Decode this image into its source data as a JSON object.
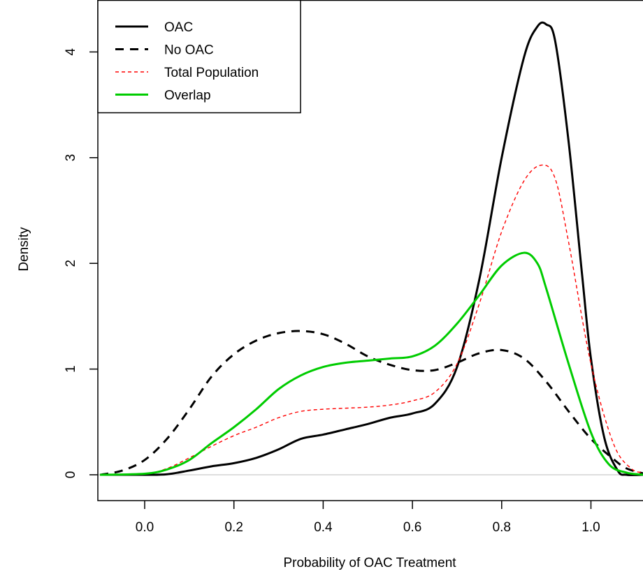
{
  "chart_data": {
    "type": "line",
    "title": "",
    "xlabel": "Probability of OAC Treatment",
    "ylabel": "Density",
    "xlim": [
      -0.1,
      1.12
    ],
    "ylim": [
      0,
      4.38
    ],
    "x_ticks": [
      0.0,
      0.2,
      0.4,
      0.6,
      0.8,
      1.0
    ],
    "x_tick_labels": [
      "0.0",
      "0.2",
      "0.4",
      "0.6",
      "0.8",
      "1.0"
    ],
    "y_ticks": [
      0,
      1,
      2,
      3,
      4
    ],
    "y_tick_labels": [
      "0",
      "1",
      "2",
      "3",
      "4"
    ],
    "grid": false,
    "legend_position": "top-left",
    "series": [
      {
        "name": "OAC",
        "color": "#000000",
        "style": "solid",
        "width": "thick",
        "x": [
          -0.1,
          0.0,
          0.05,
          0.1,
          0.15,
          0.2,
          0.25,
          0.3,
          0.35,
          0.4,
          0.45,
          0.5,
          0.55,
          0.6,
          0.65,
          0.7,
          0.75,
          0.8,
          0.85,
          0.88,
          0.9,
          0.92,
          0.95,
          0.98,
          1.0,
          1.03,
          1.06,
          1.08,
          1.12
        ],
        "y": [
          0,
          0,
          0.005,
          0.04,
          0.08,
          0.11,
          0.16,
          0.24,
          0.34,
          0.38,
          0.43,
          0.48,
          0.54,
          0.58,
          0.67,
          1.02,
          1.85,
          3.0,
          3.95,
          4.24,
          4.26,
          4.1,
          3.15,
          1.9,
          1.1,
          0.35,
          0.04,
          0.0,
          0
        ]
      },
      {
        "name": "No OAC",
        "color": "#000000",
        "style": "dashed",
        "width": "thick",
        "x": [
          -0.1,
          -0.05,
          0.0,
          0.05,
          0.1,
          0.15,
          0.2,
          0.25,
          0.3,
          0.35,
          0.4,
          0.45,
          0.5,
          0.55,
          0.6,
          0.65,
          0.7,
          0.75,
          0.8,
          0.85,
          0.9,
          0.95,
          1.0,
          1.05,
          1.08,
          1.12
        ],
        "y": [
          0.0,
          0.04,
          0.14,
          0.34,
          0.62,
          0.93,
          1.14,
          1.27,
          1.34,
          1.36,
          1.33,
          1.24,
          1.12,
          1.04,
          0.99,
          0.99,
          1.06,
          1.15,
          1.18,
          1.1,
          0.88,
          0.6,
          0.34,
          0.15,
          0.06,
          0.01
        ]
      },
      {
        "name": "Total Population",
        "color": "#ff0000",
        "style": "dotted",
        "width": "thin",
        "x": [
          -0.1,
          0.0,
          0.05,
          0.1,
          0.15,
          0.2,
          0.25,
          0.3,
          0.35,
          0.4,
          0.45,
          0.5,
          0.55,
          0.6,
          0.65,
          0.7,
          0.75,
          0.8,
          0.85,
          0.89,
          0.92,
          0.95,
          1.0,
          1.05,
          1.09,
          1.12
        ],
        "y": [
          0,
          0.01,
          0.06,
          0.16,
          0.27,
          0.37,
          0.45,
          0.54,
          0.6,
          0.62,
          0.63,
          0.64,
          0.66,
          0.7,
          0.78,
          1.05,
          1.62,
          2.3,
          2.78,
          2.93,
          2.8,
          2.2,
          1.05,
          0.3,
          0.06,
          0.02
        ]
      },
      {
        "name": "Overlap",
        "color": "#00cc00",
        "style": "solid",
        "width": "thick",
        "x": [
          -0.1,
          0.0,
          0.05,
          0.1,
          0.15,
          0.2,
          0.25,
          0.3,
          0.35,
          0.4,
          0.45,
          0.5,
          0.55,
          0.6,
          0.65,
          0.7,
          0.75,
          0.8,
          0.85,
          0.88,
          0.9,
          0.95,
          1.0,
          1.04,
          1.08,
          1.12
        ],
        "y": [
          0,
          0.01,
          0.05,
          0.14,
          0.3,
          0.45,
          0.62,
          0.81,
          0.94,
          1.02,
          1.06,
          1.08,
          1.1,
          1.12,
          1.22,
          1.43,
          1.7,
          1.98,
          2.1,
          2.0,
          1.76,
          1.05,
          0.4,
          0.1,
          0.02,
          0
        ]
      }
    ]
  }
}
